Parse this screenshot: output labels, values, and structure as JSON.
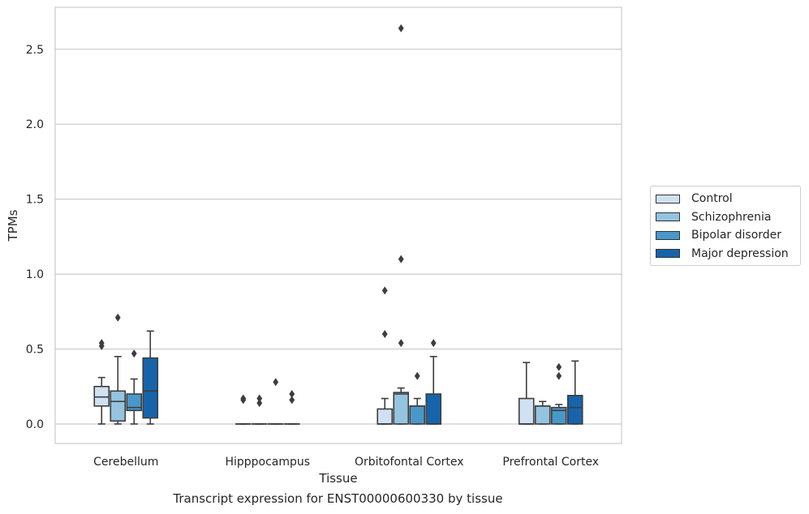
{
  "chart_data": {
    "type": "box",
    "xlabel": "Tissue",
    "ylabel": "TPMs",
    "caption": "Transcript expression for ENST00000600330 by tissue",
    "categories": [
      "Cerebellum",
      "Hipppocampus",
      "Orbitofontal Cortex",
      "Prefrontal Cortex"
    ],
    "ylim": [
      -0.13,
      2.78
    ],
    "yticks": [
      0.0,
      0.5,
      1.0,
      1.5,
      2.0,
      2.5
    ],
    "ytick_labels": [
      "0.0",
      "0.5",
      "1.0",
      "1.5",
      "2.0",
      "2.5"
    ],
    "grid": "horizontal",
    "legend_position": "right",
    "series": [
      {
        "name": "Control",
        "color": "#d0e1f2",
        "boxes": [
          {
            "q1": 0.12,
            "median": 0.18,
            "q3": 0.25,
            "whislo": 0.0,
            "whishi": 0.31,
            "fliers": [
              0.52,
              0.54
            ]
          },
          {
            "q1": 0.0,
            "median": 0.0,
            "q3": 0.0,
            "whislo": 0.0,
            "whishi": 0.0,
            "fliers": [
              0.16,
              0.17
            ]
          },
          {
            "q1": 0.0,
            "median": 0.0,
            "q3": 0.1,
            "whislo": 0.0,
            "whishi": 0.17,
            "fliers": [
              0.6,
              0.89
            ]
          },
          {
            "q1": 0.0,
            "median": 0.0,
            "q3": 0.17,
            "whislo": 0.0,
            "whishi": 0.41,
            "fliers": []
          }
        ]
      },
      {
        "name": "Schizophrenia",
        "color": "#94c4df",
        "boxes": [
          {
            "q1": 0.02,
            "median": 0.15,
            "q3": 0.22,
            "whislo": 0.0,
            "whishi": 0.45,
            "fliers": [
              0.71
            ]
          },
          {
            "q1": 0.0,
            "median": 0.0,
            "q3": 0.0,
            "whislo": 0.0,
            "whishi": 0.0,
            "fliers": [
              0.14,
              0.17
            ]
          },
          {
            "q1": 0.0,
            "median": 0.2,
            "q3": 0.21,
            "whislo": 0.0,
            "whishi": 0.24,
            "fliers": [
              0.54,
              1.1,
              2.64
            ]
          },
          {
            "q1": 0.0,
            "median": 0.12,
            "q3": 0.12,
            "whislo": 0.0,
            "whishi": 0.15,
            "fliers": []
          }
        ]
      },
      {
        "name": "Bipolar disorder",
        "color": "#4a98c9",
        "boxes": [
          {
            "q1": 0.09,
            "median": 0.11,
            "q3": 0.2,
            "whislo": 0.0,
            "whishi": 0.3,
            "fliers": [
              0.47
            ]
          },
          {
            "q1": 0.0,
            "median": 0.0,
            "q3": 0.0,
            "whislo": 0.0,
            "whishi": 0.0,
            "fliers": [
              0.28
            ]
          },
          {
            "q1": 0.0,
            "median": 0.12,
            "q3": 0.12,
            "whislo": 0.0,
            "whishi": 0.17,
            "fliers": [
              0.32
            ]
          },
          {
            "q1": 0.0,
            "median": 0.09,
            "q3": 0.11,
            "whislo": 0.0,
            "whishi": 0.13,
            "fliers": [
              0.32,
              0.38
            ]
          }
        ]
      },
      {
        "name": "Major depression",
        "color": "#1764ab",
        "boxes": [
          {
            "q1": 0.04,
            "median": 0.22,
            "q3": 0.44,
            "whislo": 0.0,
            "whishi": 0.62,
            "fliers": []
          },
          {
            "q1": 0.0,
            "median": 0.0,
            "q3": 0.0,
            "whislo": 0.0,
            "whishi": 0.0,
            "fliers": [
              0.16,
              0.2
            ]
          },
          {
            "q1": 0.0,
            "median": 0.0,
            "q3": 0.2,
            "whislo": 0.0,
            "whishi": 0.45,
            "fliers": [
              0.54
            ]
          },
          {
            "q1": 0.0,
            "median": 0.11,
            "q3": 0.19,
            "whislo": 0.0,
            "whishi": 0.42,
            "fliers": []
          }
        ]
      }
    ]
  }
}
